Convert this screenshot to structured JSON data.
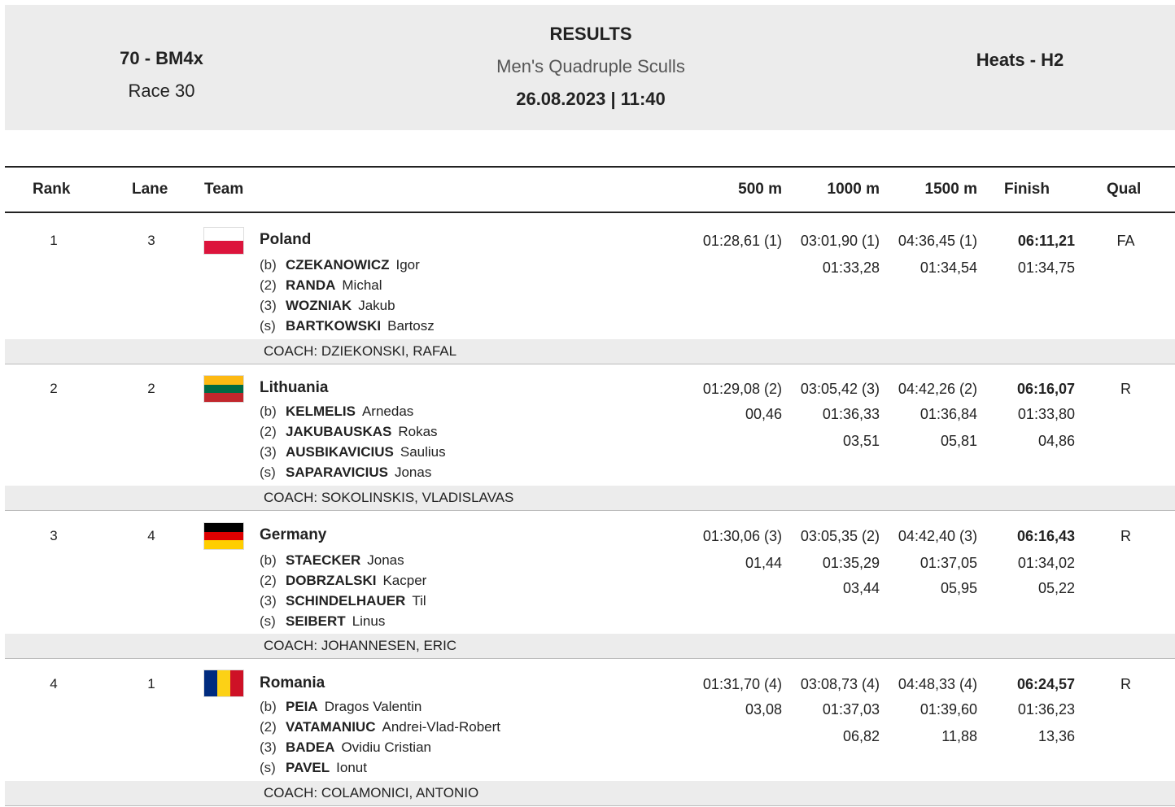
{
  "header": {
    "event": "70 - BM4x",
    "race": "Race 30",
    "results_label": "RESULTS",
    "subtitle": "Men's Quadruple Sculls",
    "datetime": "26.08.2023 | 11:40",
    "phase": "Heats - H2"
  },
  "columns": {
    "rank": "Rank",
    "lane": "Lane",
    "team": "Team",
    "s500": "500 m",
    "s1000": "1000 m",
    "s1500": "1500 m",
    "finish": "Finish",
    "qual": "Qual"
  },
  "rows": [
    {
      "rank": "1",
      "lane": "3",
      "team": "Poland",
      "flag_colors": [
        "#ffffff",
        "#dc143c"
      ],
      "crew": [
        {
          "pos": "(b)",
          "surname": "CZEKANOWICZ",
          "first": "Igor"
        },
        {
          "pos": "(2)",
          "surname": "RANDA",
          "first": "Michal"
        },
        {
          "pos": "(3)",
          "surname": "WOZNIAK",
          "first": "Jakub"
        },
        {
          "pos": "(s)",
          "surname": "BARTKOWSKI",
          "first": "Bartosz"
        }
      ],
      "s500": [
        "01:28,61 (1)",
        "",
        ""
      ],
      "s1000": [
        "03:01,90 (1)",
        "01:33,28",
        ""
      ],
      "s1500": [
        "04:36,45 (1)",
        "01:34,54",
        ""
      ],
      "finish": [
        "06:11,21",
        "01:34,75",
        ""
      ],
      "qual": "FA",
      "coach": "COACH: DZIEKONSKI, RAFAL"
    },
    {
      "rank": "2",
      "lane": "2",
      "team": "Lithuania",
      "flag_colors": [
        "#fdb913",
        "#006a44",
        "#c1272d"
      ],
      "crew": [
        {
          "pos": "(b)",
          "surname": "KELMELIS",
          "first": "Arnedas"
        },
        {
          "pos": "(2)",
          "surname": "JAKUBAUSKAS",
          "first": "Rokas"
        },
        {
          "pos": "(3)",
          "surname": "AUSBIKAVICIUS",
          "first": "Saulius"
        },
        {
          "pos": "(s)",
          "surname": "SAPARAVICIUS",
          "first": "Jonas"
        }
      ],
      "s500": [
        "01:29,08 (2)",
        "00,46",
        ""
      ],
      "s1000": [
        "03:05,42 (3)",
        "01:36,33",
        "03,51"
      ],
      "s1500": [
        "04:42,26 (2)",
        "01:36,84",
        "05,81"
      ],
      "finish": [
        "06:16,07",
        "01:33,80",
        "04,86"
      ],
      "qual": "R",
      "coach": "COACH: SOKOLINSKIS, VLADISLAVAS"
    },
    {
      "rank": "3",
      "lane": "4",
      "team": "Germany",
      "flag_colors": [
        "#000000",
        "#dd0000",
        "#ffce00"
      ],
      "crew": [
        {
          "pos": "(b)",
          "surname": "STAECKER",
          "first": "Jonas"
        },
        {
          "pos": "(2)",
          "surname": "DOBRZALSKI",
          "first": "Kacper"
        },
        {
          "pos": "(3)",
          "surname": "SCHINDELHAUER",
          "first": "Til"
        },
        {
          "pos": "(s)",
          "surname": "SEIBERT",
          "first": "Linus"
        }
      ],
      "s500": [
        "01:30,06 (3)",
        "01,44",
        ""
      ],
      "s1000": [
        "03:05,35 (2)",
        "01:35,29",
        "03,44"
      ],
      "s1500": [
        "04:42,40 (3)",
        "01:37,05",
        "05,95"
      ],
      "finish": [
        "06:16,43",
        "01:34,02",
        "05,22"
      ],
      "qual": "R",
      "coach": "COACH: JOHANNESEN, ERIC"
    },
    {
      "rank": "4",
      "lane": "1",
      "team": "Romania",
      "flag_colors": [
        "#002b7f",
        "#fcd116",
        "#ce1126"
      ],
      "crew": [
        {
          "pos": "(b)",
          "surname": "PEIA",
          "first": "Dragos Valentin"
        },
        {
          "pos": "(2)",
          "surname": "VATAMANIUC",
          "first": "Andrei-Vlad-Robert"
        },
        {
          "pos": "(3)",
          "surname": "BADEA",
          "first": "Ovidiu Cristian"
        },
        {
          "pos": "(s)",
          "surname": "PAVEL",
          "first": "Ionut"
        }
      ],
      "s500": [
        "01:31,70 (4)",
        "03,08",
        ""
      ],
      "s1000": [
        "03:08,73 (4)",
        "01:37,03",
        "06,82"
      ],
      "s1500": [
        "04:48,33 (4)",
        "01:39,60",
        "11,88"
      ],
      "finish": [
        "06:24,57",
        "01:36,23",
        "13,36"
      ],
      "qual": "R",
      "coach": "COACH: COLAMONICI, ANTONIO"
    }
  ]
}
